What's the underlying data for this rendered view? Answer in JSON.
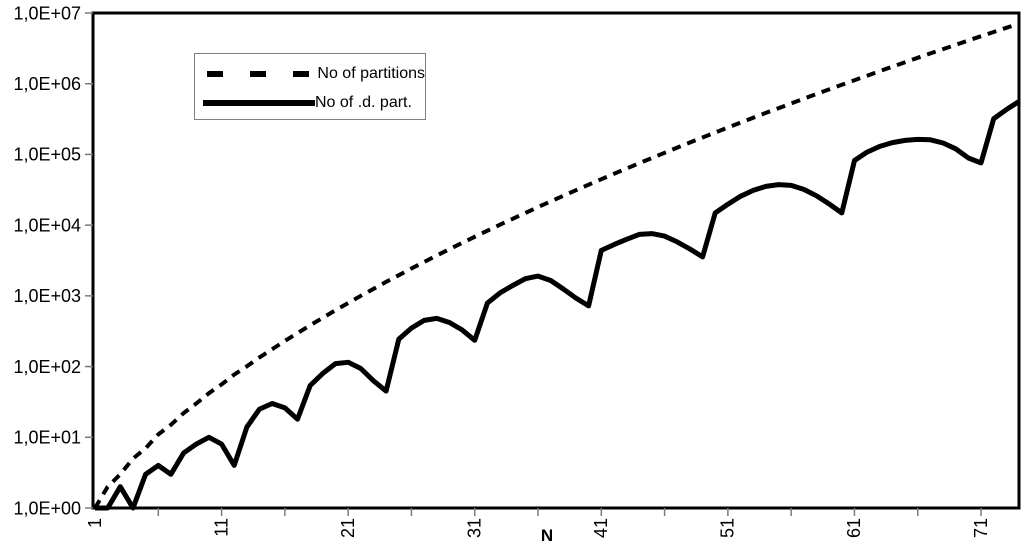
{
  "chart_data": {
    "type": "line",
    "title": "",
    "xlabel": "N",
    "ylabel": "",
    "x_start": 1,
    "x_end": 74,
    "y_scale": "log10",
    "y_min": 1,
    "y_max": 10000000,
    "grid": false,
    "legend_position": "top-left-inside",
    "y_tick_labels": [
      "1,0E+00",
      "1,0E+01",
      "1,0E+02",
      "1,0E+03",
      "1,0E+04",
      "1,0E+05",
      "1,0E+06",
      "1,0E+07"
    ],
    "x_major_tick_values": [
      1,
      11,
      21,
      31,
      41,
      51,
      61,
      71
    ],
    "x_major_tick_labels": [
      "1",
      "11",
      "21",
      "31",
      "41",
      "51",
      "61",
      "71"
    ],
    "x_minor_tick_values": [
      6,
      11,
      16,
      21,
      26,
      31,
      36,
      41,
      46,
      51,
      56,
      61,
      66,
      71
    ],
    "series": [
      {
        "name": "No of partitions",
        "style": "dashed",
        "color": "#000000",
        "values": [
          1,
          2,
          3,
          5,
          7,
          11,
          15,
          22,
          30,
          42,
          56,
          77,
          101,
          135,
          176,
          231,
          297,
          385,
          490,
          627,
          792,
          1002,
          1255,
          1575,
          1958,
          2436,
          3010,
          3718,
          4565,
          5604,
          6842,
          8349,
          10143,
          12310,
          14883,
          17977,
          21637,
          26015,
          31185,
          37338,
          44583,
          53174,
          63261,
          75175,
          89134,
          105558,
          124754,
          147273,
          173525,
          204226,
          239943,
          281589,
          329931,
          386155,
          451276,
          526823,
          614154,
          715220,
          831820,
          966467,
          1121505,
          1300156,
          1505499,
          1741630,
          2012558,
          2323520,
          2679689,
          3087735,
          3554345,
          4087968,
          4697205,
          5392783,
          6185689,
          7089500
        ]
      },
      {
        "name": "No of .d. part.",
        "style": "solid",
        "color": "#000000",
        "values": [
          1,
          1,
          2,
          1,
          3,
          4,
          3,
          6,
          8,
          10,
          8,
          4,
          14,
          25,
          30,
          26,
          18,
          54,
          80,
          110,
          115,
          94,
          63,
          45,
          245,
          350,
          450,
          480,
          420,
          330,
          235,
          790,
          1100,
          1400,
          1750,
          1900,
          1650,
          1250,
          930,
          720,
          4400,
          5300,
          6300,
          7400,
          7600,
          7000,
          5800,
          4600,
          3550,
          14900,
          19800,
          25600,
          31000,
          35300,
          37400,
          36500,
          32000,
          26000,
          20000,
          14900,
          82000,
          108000,
          130000,
          147000,
          158000,
          163000,
          161000,
          145000,
          120000,
          89000,
          76000,
          320000,
          430000,
          560000
        ]
      }
    ]
  },
  "colors": {
    "line": "#000000",
    "background": "#ffffff",
    "tick": "#7a7a7a",
    "legend_border": "#808080"
  }
}
